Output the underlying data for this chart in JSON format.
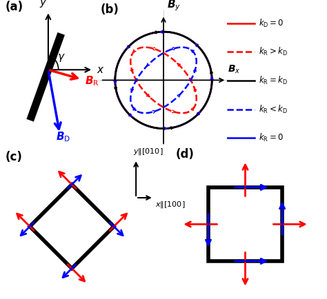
{
  "fig_width": 4.74,
  "fig_height": 4.34,
  "bg_color": "#ffffff",
  "panel_labels": [
    "(a)",
    "(b)",
    "(c)",
    "(d)"
  ],
  "panel_label_fontsize": 12,
  "panel_label_fontweight": "bold",
  "legend_b": [
    {
      "label": "$k_\\mathrm{D}=0$",
      "color": "red",
      "ls": "-"
    },
    {
      "label": "$k_\\mathrm{R}>k_\\mathrm{D}$",
      "color": "red",
      "ls": "--"
    },
    {
      "label": "$k_\\mathrm{R}=k_\\mathrm{D}$",
      "color": "black",
      "ls": "-"
    },
    {
      "label": "$k_\\mathrm{R}<k_\\mathrm{D}$",
      "color": "blue",
      "ls": "--"
    },
    {
      "label": "$k_\\mathrm{R}=0$",
      "color": "blue",
      "ls": "-"
    }
  ]
}
